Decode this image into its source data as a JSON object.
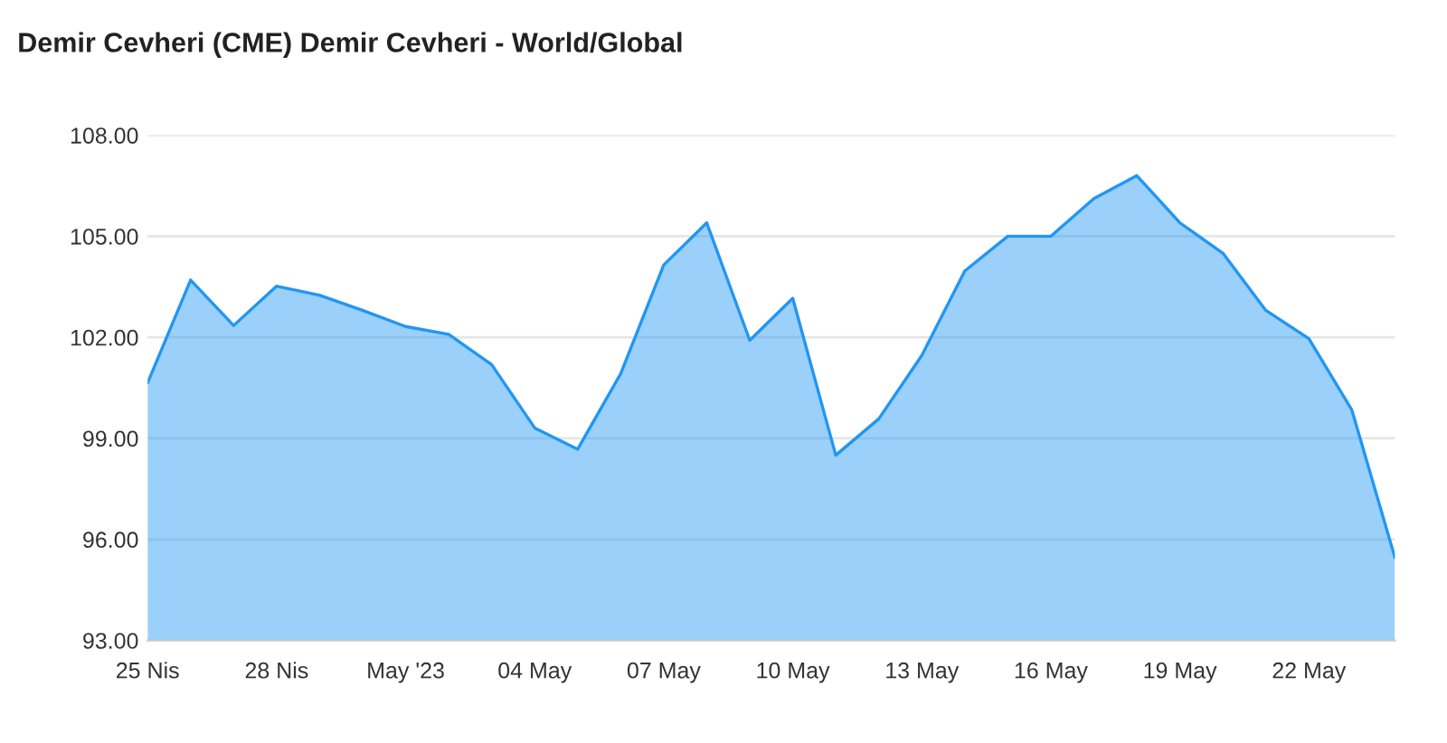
{
  "chart_data": {
    "type": "area",
    "title": "Demir Cevheri (CME) Demir Cevheri - World/Global",
    "x": [
      "2023-04-25",
      "2023-04-26",
      "2023-04-27",
      "2023-04-28",
      "2023-04-29",
      "2023-04-30",
      "2023-05-01",
      "2023-05-02",
      "2023-05-03",
      "2023-05-04",
      "2023-05-05",
      "2023-05-06",
      "2023-05-07",
      "2023-05-08",
      "2023-05-09",
      "2023-05-10",
      "2023-05-11",
      "2023-05-12",
      "2023-05-13",
      "2023-05-14",
      "2023-05-15",
      "2023-05-16",
      "2023-05-17",
      "2023-05-18",
      "2023-05-19",
      "2023-05-20",
      "2023-05-21",
      "2023-05-22",
      "2023-05-23",
      "2023-05-24"
    ],
    "series": [
      {
        "color": "#2196f3",
        "values": [
          100.65,
          103.7,
          102.35,
          103.52,
          103.25,
          102.8,
          102.32,
          102.09,
          101.19,
          99.31,
          98.68,
          100.92,
          104.15,
          105.4,
          101.91,
          103.16,
          98.5,
          99.58,
          101.46,
          103.97,
          105.0,
          105.0,
          106.12,
          106.8,
          105.4,
          104.5,
          102.8,
          101.96,
          99.84,
          95.46
        ]
      }
    ],
    "xlim": [
      "2023-04-25",
      "2023-05-24"
    ],
    "xticks": [
      {
        "value": "2023-04-25",
        "label": "25 Nis"
      },
      {
        "value": "2023-04-28",
        "label": "28 Nis"
      },
      {
        "value": "2023-05-01",
        "label": "May '23"
      },
      {
        "value": "2023-05-04",
        "label": "04 May"
      },
      {
        "value": "2023-05-07",
        "label": "07 May"
      },
      {
        "value": "2023-05-10",
        "label": "10 May"
      },
      {
        "value": "2023-05-13",
        "label": "13 May"
      },
      {
        "value": "2023-05-16",
        "label": "16 May"
      },
      {
        "value": "2023-05-19",
        "label": "19 May"
      },
      {
        "value": "2023-05-22",
        "label": "22 May"
      }
    ],
    "ylim": [
      93,
      108
    ],
    "yticks": [
      {
        "value": 93,
        "label": "93.00"
      },
      {
        "value": 96,
        "label": "96.00"
      },
      {
        "value": 99,
        "label": "99.00"
      },
      {
        "value": 102,
        "label": "102.00"
      },
      {
        "value": 105,
        "label": "105.00"
      },
      {
        "value": 108,
        "label": "108.00"
      }
    ],
    "grid": "y"
  }
}
